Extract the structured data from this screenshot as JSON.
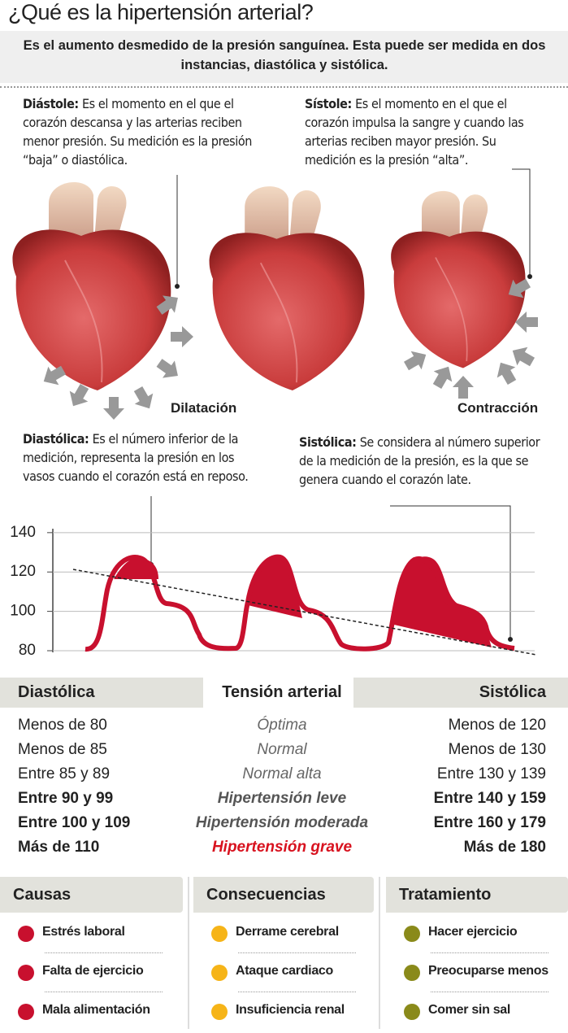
{
  "header": {
    "title": "¿Qué es la hipertensión arterial?",
    "subtitle": "Es el aumento desmedido de la presión sanguínea. Esta puede ser medida en dos instancias, diastólica y sistólica."
  },
  "diastole": {
    "label": "Diástole:",
    "text": "Es el momento en el que el corazón descansa y las arterias reciben menor presión. Su medición es la presión “baja” o diastólica."
  },
  "systole": {
    "label": "Sístole:",
    "text": "Es el momento en el que el corazón impulsa la sangre y cuando las arterias reciben mayor presión. Su medición es la presión “alta”."
  },
  "heart_labels": {
    "dilation": "Dilatación",
    "contraction": "Contracción"
  },
  "diastolic": {
    "label": "Diastólica:",
    "text": "Es el número inferior de la medición, representa la presión en los vasos cuando el corazón está en reposo."
  },
  "systolic": {
    "label": "Sistólica:",
    "text": "Se considera al número superior de la medición de la presión, es la que se genera cuando el corazón late."
  },
  "pressure_chart": {
    "ylim": [
      80,
      142
    ],
    "yticks": [
      80,
      100,
      120,
      140
    ]
  },
  "table": {
    "headers": [
      "Diastólica",
      "Tensión arterial",
      "Sistólica"
    ],
    "rows": [
      [
        "Menos de 80",
        "Óptima",
        "Menos de 120"
      ],
      [
        "Menos de 85",
        "Normal",
        "Menos de 130"
      ],
      [
        "Entre 85 y 89",
        "Normal alta",
        "Entre 130 y 139"
      ],
      [
        "Entre 90 y 99",
        "Hipertensión leve",
        "Entre 140 y 159"
      ],
      [
        "Entre 100 y 109",
        "Hipertensión moderada",
        "Entre 160 y 179"
      ],
      [
        "Más de 110",
        "Hipertensión grave",
        "Más de 180"
      ]
    ]
  },
  "panels": [
    {
      "title": "Causas",
      "items": [
        "Estrés laboral",
        "Falta de ejercicio",
        "Mala alimentación"
      ]
    },
    {
      "title": "Consecuencias",
      "items": [
        "Derrame cerebral",
        "Ataque cardiaco",
        "Insuficiencia renal"
      ]
    },
    {
      "title": "Tratamiento",
      "items": [
        "Hacer ejercicio",
        "Preocuparse menos",
        "Comer sin sal"
      ]
    }
  ]
}
